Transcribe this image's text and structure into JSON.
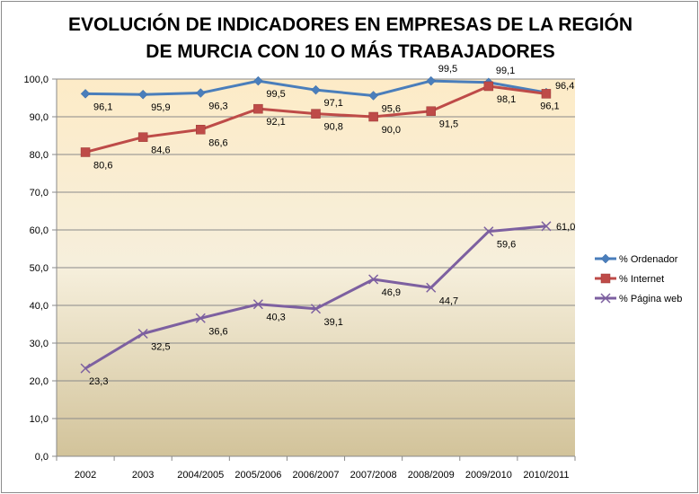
{
  "chart_data": {
    "type": "line",
    "title": [
      "EVOLUCIÓN DE INDICADORES EN EMPRESAS DE LA REGIÓN",
      "DE MURCIA CON 10 O MÁS TRABAJADORES"
    ],
    "categories": [
      "2002",
      "2003",
      "2004/2005",
      "2005/2006",
      "2006/2007",
      "2007/2008",
      "2008/2009",
      "2009/2010",
      "2010/2011"
    ],
    "ylim": [
      0,
      100
    ],
    "yticks": [
      0,
      10,
      20,
      30,
      40,
      50,
      60,
      70,
      80,
      90,
      100
    ],
    "ytick_labels": [
      "0,0",
      "10,0",
      "20,0",
      "30,0",
      "40,0",
      "50,0",
      "60,0",
      "70,0",
      "80,0",
      "90,0",
      "100,0"
    ],
    "legend_position": "right",
    "series": [
      {
        "name": "% Ordenador",
        "color": "#4a7ebb",
        "marker": "diamond",
        "values": [
          96.1,
          95.9,
          96.3,
          99.5,
          97.1,
          95.6,
          99.5,
          99.1,
          96.4
        ],
        "labels": [
          "96,1",
          "95,9",
          "96,3",
          "99,5",
          "97,1",
          "95,6",
          "99,5",
          "99,1",
          "96,4"
        ]
      },
      {
        "name": "% Internet",
        "color": "#be4b48",
        "marker": "square",
        "values": [
          80.6,
          84.6,
          86.6,
          92.1,
          90.8,
          90.0,
          91.5,
          98.1,
          96.1
        ],
        "labels": [
          "80,6",
          "84,6",
          "86,6",
          "92,1",
          "90,8",
          "90,0",
          "91,5",
          "98,1",
          "96,1"
        ]
      },
      {
        "name": "% Página web",
        "color": "#7d60a0",
        "marker": "x",
        "values": [
          23.3,
          32.5,
          36.6,
          40.3,
          39.1,
          46.9,
          44.7,
          59.6,
          61.0
        ],
        "labels": [
          "23,3",
          "32,5",
          "36,6",
          "40,3",
          "39,1",
          "46,9",
          "44,7",
          "59,6",
          "61,0"
        ]
      }
    ]
  }
}
